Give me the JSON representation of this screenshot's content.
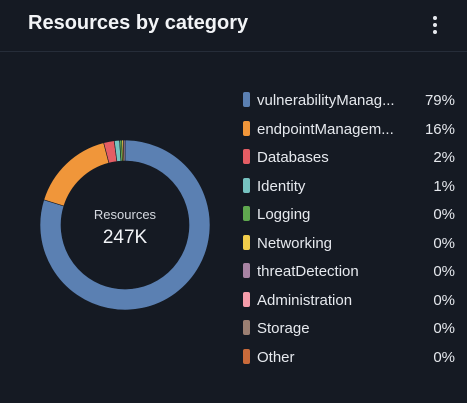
{
  "header": {
    "title": "Resources by category",
    "menu_icon": "kebab-menu-icon"
  },
  "center": {
    "label": "Resources",
    "value": "247K"
  },
  "chart_data": {
    "type": "pie",
    "categories": [
      "vulnerabilityManagement",
      "endpointManagement",
      "Databases",
      "Identity",
      "Logging",
      "Networking",
      "threatDetection",
      "Administration",
      "Storage",
      "Other"
    ],
    "labels": [
      "vulnerabilityManag...",
      "endpointManagem...",
      "Databases",
      "Identity",
      "Logging",
      "Networking",
      "threatDetection",
      "Administration",
      "Storage",
      "Other"
    ],
    "values": [
      79,
      16,
      2,
      1,
      0.4,
      0.3,
      0.3,
      0,
      0,
      0
    ],
    "value_labels": [
      "79%",
      "16%",
      "2%",
      "1%",
      "0%",
      "0%",
      "0%",
      "0%",
      "0%",
      "0%"
    ],
    "colors": [
      "#5b80b2",
      "#f0963a",
      "#e45d64",
      "#76c2c0",
      "#5fa84f",
      "#f1cd4b",
      "#a783a3",
      "#f59dab",
      "#9b7f72",
      "#c96a3a"
    ],
    "donut": true,
    "legend": "right"
  }
}
